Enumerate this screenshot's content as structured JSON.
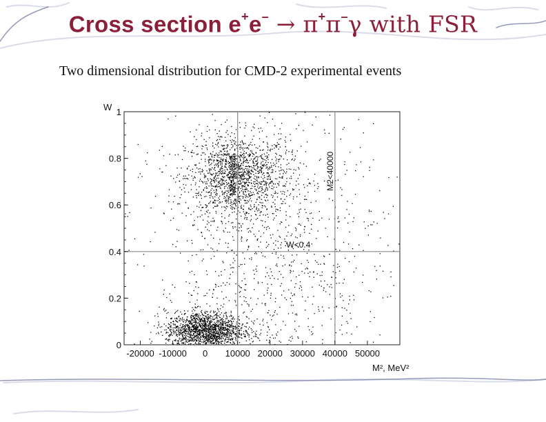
{
  "slide": {
    "title_parts": [
      "Cross section e",
      "+",
      "e",
      "–",
      " → π",
      "+",
      "π",
      "–",
      "γ with FSR"
    ],
    "subtitle": "Two dimensional distribution for CMD-2 experimental events"
  },
  "colors": {
    "title": "#8b1f3a",
    "frame_lines": "#888888",
    "points": "#000000"
  },
  "chart_data": {
    "type": "scatter",
    "title": "",
    "xlabel": "M², MeV²",
    "ylabel": "W",
    "xlim": [
      -25000,
      60000
    ],
    "ylim": [
      0,
      1.0
    ],
    "x_ticks": [
      -20000,
      -10000,
      0,
      10000,
      20000,
      30000,
      40000,
      50000
    ],
    "x_tick_labels": [
      "-20000",
      "-10000",
      "0",
      "10000",
      "20000",
      "30000",
      "40000",
      "50000"
    ],
    "y_ticks": [
      0,
      0.2,
      0.4,
      0.6,
      0.8,
      1
    ],
    "y_tick_labels": [
      "0",
      "0.2",
      "0.4",
      "0.6",
      "0.8",
      "1"
    ],
    "cut_lines": [
      {
        "orientation": "vertical",
        "value": 10000,
        "label": "M2>10000"
      },
      {
        "orientation": "vertical",
        "value": 40000,
        "label": "M2<40000"
      },
      {
        "orientation": "horizontal",
        "value": 0.4,
        "label": "W<0.4"
      }
    ],
    "clusters": [
      {
        "name": "",
        "x_mean": 10000,
        "x_sd": 8000,
        "y_mean": 0.72,
        "y_sd": 0.09,
        "count": 1500
      },
      {
        "name": "",
        "x_mean": 0,
        "x_sd": 6000,
        "y_mean": 0.06,
        "y_sd": 0.04,
        "count": 1600
      },
      {
        "name": "",
        "x_mean": 20000,
        "x_sd": 18000,
        "y_mean": 0.3,
        "y_sd": 0.35,
        "count": 1200
      }
    ],
    "grid": false
  }
}
